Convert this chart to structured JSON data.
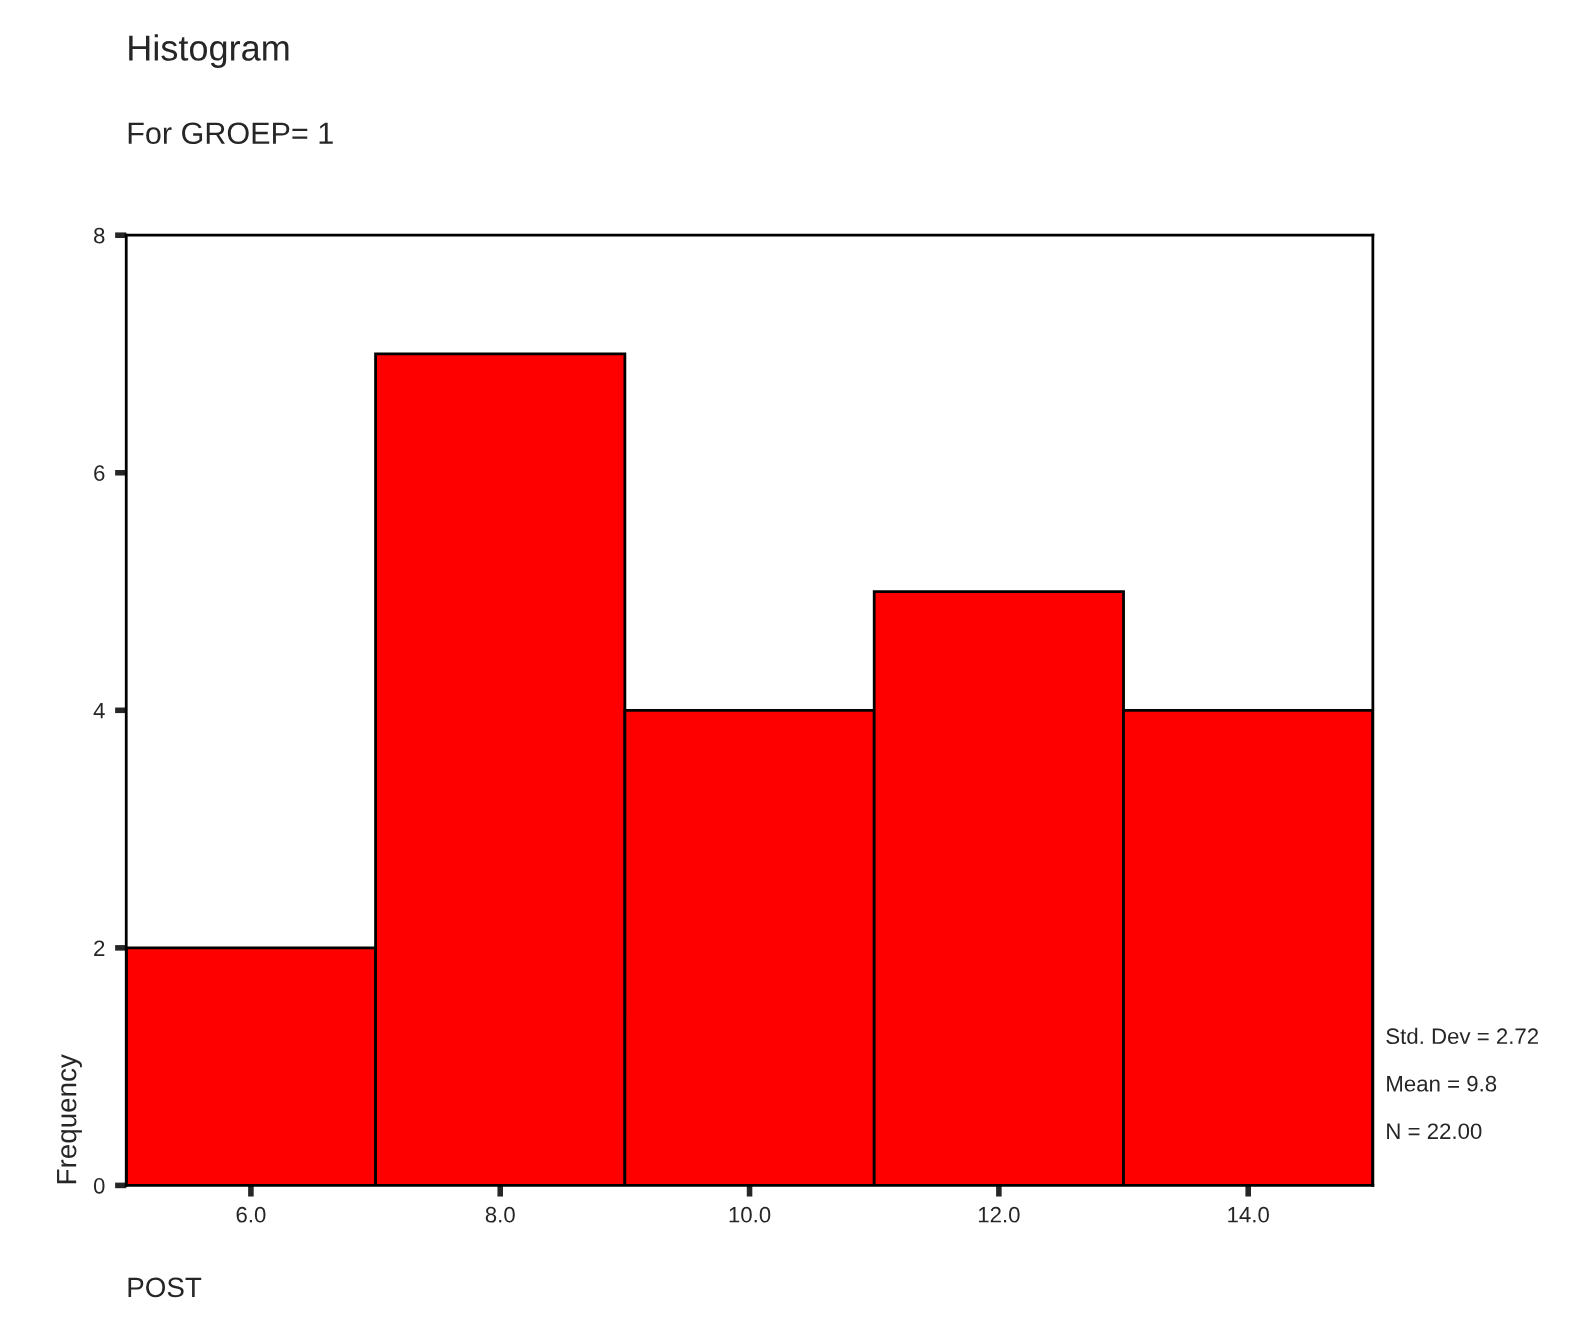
{
  "chart_data": {
    "type": "histogram",
    "title": "Histogram",
    "subtitle": "For GROEP= 1",
    "xlabel": "POST",
    "ylabel": "Frequency",
    "bins": [
      5,
      7,
      9,
      11,
      13,
      15
    ],
    "values": [
      2,
      7,
      4,
      5,
      4
    ],
    "color": "#ff0000",
    "xlim": [
      5,
      15
    ],
    "xticks": [
      {
        "value": 6,
        "label": "6.0"
      },
      {
        "value": 8,
        "label": "8.0"
      },
      {
        "value": 10,
        "label": "10.0"
      },
      {
        "value": 12,
        "label": "12.0"
      },
      {
        "value": 14,
        "label": "14.0"
      }
    ],
    "ylim": [
      0,
      8
    ],
    "yticks": [
      0,
      2,
      4,
      6,
      8
    ],
    "grid": false,
    "legend": false,
    "annotations": [
      "Std. Dev = 2.72",
      "Mean = 9.8",
      "N = 22.00"
    ]
  }
}
